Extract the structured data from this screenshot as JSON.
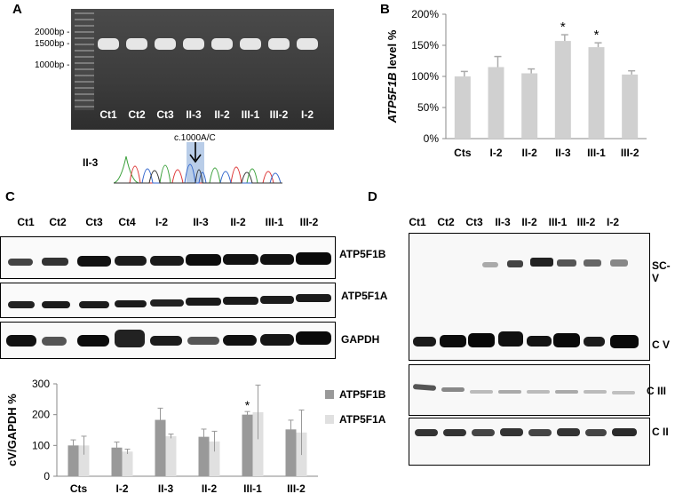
{
  "panelA": {
    "letter": "A",
    "ladder_labels": [
      "2000bp -",
      "1500bp -",
      "1000bp -"
    ],
    "lanes": [
      "Ct1",
      "Ct2",
      "Ct3",
      "II-3",
      "II-2",
      "III-1",
      "III-2",
      "I-2"
    ],
    "seq_sample": "II-3",
    "variant": "c.1000A/C"
  },
  "panelB": {
    "letter": "B",
    "chart_data": {
      "type": "bar",
      "categories": [
        "Cts",
        "I-2",
        "II-2",
        "II-3",
        "III-1",
        "III-2"
      ],
      "values": [
        100,
        115,
        105,
        157,
        147,
        103
      ],
      "errors": [
        8,
        17,
        7,
        10,
        7,
        6
      ],
      "significant": [
        false,
        false,
        false,
        true,
        true,
        false
      ],
      "ylabel": "ATP5F1B level %",
      "ylim": [
        0,
        200
      ],
      "yticks": [
        "0%",
        "50%",
        "100%",
        "150%",
        "200%"
      ],
      "star": "*",
      "grid": false,
      "color": "#d0d0d0"
    }
  },
  "panelC": {
    "letter": "C",
    "lanes": [
      "Ct1",
      "Ct2",
      "Ct3",
      "Ct4",
      "I-2",
      "II-3",
      "II-2",
      "III-1",
      "III-2"
    ],
    "blots": [
      "ATP5F1B",
      "ATP5F1A",
      "GAPDH"
    ],
    "chart_data": {
      "type": "bar",
      "categories": [
        "Cts",
        "I-2",
        "II-3",
        "II-2",
        "III-1",
        "III-2"
      ],
      "series": [
        {
          "name": "ATP5F1B",
          "values": [
            100,
            93,
            183,
            128,
            200,
            152
          ],
          "errors": [
            18,
            18,
            38,
            25,
            10,
            30
          ],
          "color": "#999999"
        },
        {
          "name": "ATP5F1A",
          "values": [
            100,
            80,
            130,
            113,
            208,
            142
          ],
          "errors": [
            30,
            8,
            7,
            33,
            88,
            73
          ],
          "color": "#e0e0e0"
        }
      ],
      "ylabel": "cV/GAPDH %",
      "ylim": [
        0,
        300
      ],
      "yticks": [
        "0",
        "100",
        "200",
        "300"
      ],
      "star_category": "III-1",
      "star": "*",
      "legend": "right",
      "grid": false
    }
  },
  "panelD": {
    "letter": "D",
    "lanes": [
      "Ct1",
      "Ct2",
      "Ct3",
      "II-3",
      "II-2",
      "III-1",
      "III-2",
      "I-2"
    ],
    "complexes": [
      "SC-V",
      "C V",
      "C III",
      "C II"
    ]
  }
}
